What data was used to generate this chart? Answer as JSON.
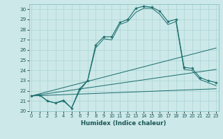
{
  "xlabel": "Humidex (Indice chaleur)",
  "x_values": [
    0,
    1,
    2,
    3,
    4,
    5,
    6,
    7,
    8,
    9,
    10,
    11,
    12,
    13,
    14,
    15,
    16,
    17,
    18,
    19,
    20,
    21,
    22,
    23
  ],
  "line1": [
    21.5,
    21.6,
    21.0,
    20.8,
    21.0,
    20.3,
    22.2,
    23.0,
    26.5,
    27.3,
    27.3,
    28.7,
    29.0,
    30.1,
    30.3,
    30.2,
    29.8,
    28.8,
    29.0,
    24.3,
    24.2,
    23.3,
    23.0,
    22.8
  ],
  "line2": [
    21.5,
    21.6,
    21.0,
    20.8,
    21.1,
    20.3,
    22.0,
    23.0,
    26.2,
    27.1,
    27.0,
    28.5,
    28.8,
    29.7,
    30.1,
    30.1,
    29.5,
    28.5,
    28.8,
    24.1,
    24.0,
    23.1,
    22.8,
    22.5
  ],
  "fan_lines": [
    {
      "x": [
        0,
        23
      ],
      "y": [
        21.5,
        26.2
      ]
    },
    {
      "x": [
        0,
        23
      ],
      "y": [
        21.5,
        24.1
      ]
    },
    {
      "x": [
        0,
        23
      ],
      "y": [
        21.5,
        22.2
      ]
    }
  ],
  "bg_color": "#cce8e8",
  "grid_color": "#aad4d4",
  "line_color": "#1a6b6b",
  "ylim": [
    20,
    30.5
  ],
  "yticks": [
    20,
    21,
    22,
    23,
    24,
    25,
    26,
    27,
    28,
    29,
    30
  ],
  "xticks": [
    0,
    1,
    2,
    3,
    4,
    5,
    6,
    7,
    8,
    9,
    10,
    11,
    12,
    13,
    14,
    15,
    16,
    17,
    18,
    19,
    20,
    21,
    22,
    23
  ],
  "xlim": [
    -0.3,
    23.3
  ]
}
